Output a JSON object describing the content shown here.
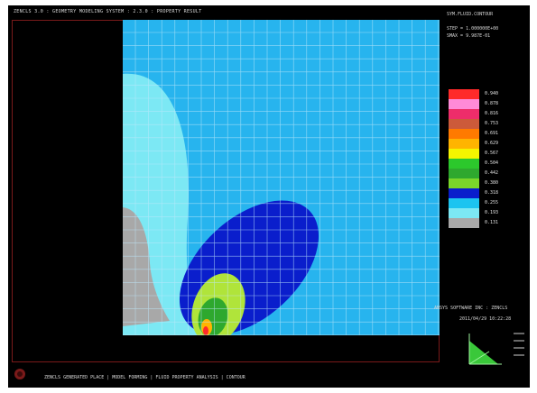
{
  "window": {
    "title": "ZENCLS 3.0 : GEOMETRY MODELING SYSTEM : 2.3.0 : PROPERTY RESULT"
  },
  "info": {
    "title": "SYM.FLUID.CONTOUR",
    "lines": [
      "STEP = 1.000000E+00",
      "SMAX = 9.987E-01"
    ]
  },
  "legend": {
    "entries": [
      {
        "color": "#ff2a2a",
        "label": "0.940"
      },
      {
        "color": "#ff8ad8",
        "label": "0.878"
      },
      {
        "color": "#ee2d6a",
        "label": "0.816"
      },
      {
        "color": "#cc5a3a",
        "label": "0.753"
      },
      {
        "color": "#ff7a00",
        "label": "0.691"
      },
      {
        "color": "#ffb400",
        "label": "0.629"
      },
      {
        "color": "#f5f500",
        "label": "0.567"
      },
      {
        "color": "#2cc82c",
        "label": "0.504"
      },
      {
        "color": "#2ea82e",
        "label": "0.442"
      },
      {
        "color": "#7ad62a",
        "label": "0.380"
      },
      {
        "color": "#0a1ecc",
        "label": "0.318"
      },
      {
        "color": "#1cc4f0",
        "label": "0.255"
      },
      {
        "color": "#7ce8f4",
        "label": "0.193"
      },
      {
        "color": "#a8a8a8",
        "label": "0.131"
      }
    ]
  },
  "footer": {
    "software": "ANSYS SOFTWARE INC : ZENCLS",
    "date": "2011/04/29  10:22:28",
    "status": "ZENCLS GENERATED PLACE | MODEL FORMING | FLUID PROPERTY ANALYSIS | CONTOUR"
  },
  "colors": {
    "background": "#000000",
    "plot_background": "#27b4ee",
    "grid": "#bfe8fb"
  }
}
